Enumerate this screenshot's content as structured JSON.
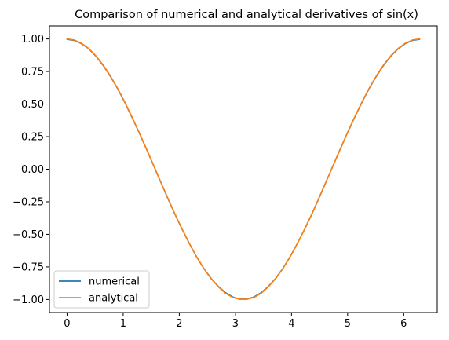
{
  "chart_data": {
    "type": "line",
    "title": "Comparison of numerical and analytical derivatives of sin(x)",
    "xlabel": "",
    "ylabel": "",
    "xlim": [
      -0.314,
      6.597
    ],
    "ylim": [
      -1.1,
      1.1
    ],
    "x_ticks": [
      0,
      1,
      2,
      3,
      4,
      5,
      6
    ],
    "x_tick_labels": [
      "0",
      "1",
      "2",
      "3",
      "4",
      "5",
      "6"
    ],
    "y_ticks": [
      1.0,
      0.75,
      0.5,
      0.25,
      0.0,
      -0.25,
      -0.5,
      -0.75,
      -1.0
    ],
    "y_tick_labels": [
      "1.00",
      "0.75",
      "0.50",
      "0.25",
      "0.00",
      "−0.25",
      "−0.50",
      "−0.75",
      "−1.00"
    ],
    "grid": false,
    "legend_position": "lower-left",
    "x": [
      0.0,
      0.128,
      0.256,
      0.385,
      0.513,
      0.641,
      0.769,
      0.898,
      1.026,
      1.154,
      1.282,
      1.411,
      1.539,
      1.667,
      1.795,
      1.924,
      2.052,
      2.18,
      2.308,
      2.436,
      2.565,
      2.693,
      2.821,
      2.949,
      3.078,
      3.206,
      3.334,
      3.462,
      3.59,
      3.719,
      3.847,
      3.975,
      4.103,
      4.232,
      4.36,
      4.488,
      4.616,
      4.745,
      4.873,
      5.001,
      5.129,
      5.257,
      5.386,
      5.514,
      5.642,
      5.77,
      5.899,
      6.027,
      6.155,
      6.283
    ],
    "series": [
      {
        "name": "numerical",
        "color": "#1f77b4",
        "values": [
          0.997,
          0.989,
          0.964,
          0.925,
          0.868,
          0.798,
          0.715,
          0.621,
          0.515,
          0.401,
          0.283,
          0.159,
          0.032,
          -0.096,
          -0.223,
          -0.347,
          -0.462,
          -0.571,
          -0.672,
          -0.761,
          -0.837,
          -0.899,
          -0.947,
          -0.98,
          -0.997,
          -0.997,
          -0.98,
          -0.947,
          -0.899,
          -0.837,
          -0.761,
          -0.672,
          -0.571,
          -0.462,
          -0.347,
          -0.223,
          -0.096,
          0.032,
          0.159,
          0.283,
          0.401,
          0.515,
          0.621,
          0.715,
          0.798,
          0.868,
          0.925,
          0.964,
          0.989,
          0.997
        ]
      },
      {
        "name": "analytical",
        "color": "#ff7f0e",
        "values": [
          1.0,
          0.992,
          0.967,
          0.927,
          0.871,
          0.801,
          0.718,
          0.623,
          0.518,
          0.404,
          0.284,
          0.159,
          0.032,
          -0.096,
          -0.222,
          -0.345,
          -0.462,
          -0.572,
          -0.673,
          -0.762,
          -0.839,
          -0.902,
          -0.951,
          -0.984,
          -0.998,
          -0.998,
          -0.984,
          -0.951,
          -0.902,
          -0.839,
          -0.762,
          -0.673,
          -0.572,
          -0.462,
          -0.345,
          -0.222,
          -0.096,
          0.032,
          0.159,
          0.284,
          0.404,
          0.518,
          0.623,
          0.718,
          0.801,
          0.871,
          0.927,
          0.967,
          0.992,
          1.0
        ]
      }
    ]
  }
}
